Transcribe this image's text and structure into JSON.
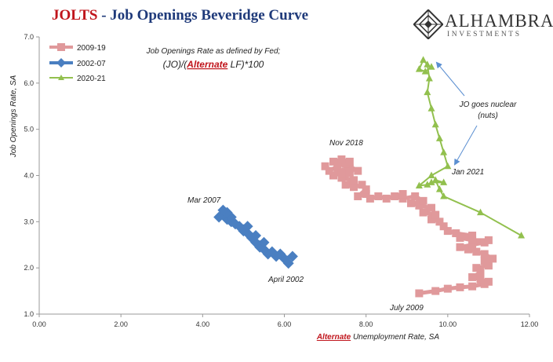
{
  "header": {
    "title_accent": "JOLTS",
    "title_rest": " - Job Openings Beveridge Curve"
  },
  "logo": {
    "name": "ALHAMBRA",
    "tagline": "INVESTMENTS"
  },
  "annotations": {
    "definition_line1": "Job Openings Rate as defined by Fed;",
    "definition_pre": "(JO)/(",
    "definition_accent": "Alternate",
    "definition_post": " LF)*100",
    "nuclear_line1": "JO goes nuclear",
    "nuclear_line2": "(nuts)",
    "mar_2007": "Mar 2007",
    "april_2002": "April 2002",
    "nov_2018": "Nov 2018",
    "july_2009": "July 2009",
    "jan_2021": "Jan 2021"
  },
  "colors": {
    "series_2009_19": "#e0999b",
    "series_2002_07": "#4a7fc1",
    "series_2020_21": "#92c04e",
    "accent": "#c0141b",
    "arrow": "#5b8fd1"
  },
  "chart_data": {
    "type": "scatter",
    "xlabel_accent": "Alternate",
    "xlabel_rest": " Unemployment Rate, SA",
    "ylabel": "Job Openings Rate, SA",
    "xlim": [
      0,
      12
    ],
    "ylim": [
      1,
      7
    ],
    "x_ticks": [
      "0.00",
      "2.00",
      "4.00",
      "6.00",
      "8.00",
      "10.00",
      "12.00"
    ],
    "y_ticks": [
      "1.0",
      "2.0",
      "3.0",
      "4.0",
      "5.0",
      "6.0",
      "7.0"
    ],
    "grid": false,
    "legend": "top-left",
    "series": [
      {
        "name": "2009-19",
        "marker": "square",
        "points": [
          [
            9.3,
            1.45
          ],
          [
            9.7,
            1.5
          ],
          [
            10.0,
            1.55
          ],
          [
            10.3,
            1.58
          ],
          [
            10.6,
            1.6
          ],
          [
            10.9,
            1.65
          ],
          [
            11.0,
            1.7
          ],
          [
            10.8,
            1.75
          ],
          [
            10.6,
            1.8
          ],
          [
            10.8,
            1.9
          ],
          [
            10.7,
            2.0
          ],
          [
            11.0,
            2.05
          ],
          [
            10.9,
            2.15
          ],
          [
            11.1,
            2.2
          ],
          [
            10.9,
            2.3
          ],
          [
            10.7,
            2.35
          ],
          [
            10.5,
            2.4
          ],
          [
            10.3,
            2.45
          ],
          [
            10.6,
            2.5
          ],
          [
            10.9,
            2.55
          ],
          [
            11.0,
            2.6
          ],
          [
            10.6,
            2.6
          ],
          [
            10.3,
            2.65
          ],
          [
            10.6,
            2.7
          ],
          [
            10.2,
            2.75
          ],
          [
            10.0,
            2.8
          ],
          [
            9.9,
            2.9
          ],
          [
            9.8,
            3.0
          ],
          [
            9.6,
            3.05
          ],
          [
            9.7,
            3.15
          ],
          [
            9.4,
            3.2
          ],
          [
            9.6,
            3.3
          ],
          [
            9.3,
            3.35
          ],
          [
            9.1,
            3.4
          ],
          [
            9.4,
            3.45
          ],
          [
            9.2,
            3.55
          ],
          [
            8.9,
            3.5
          ],
          [
            8.7,
            3.55
          ],
          [
            8.9,
            3.6
          ],
          [
            8.5,
            3.5
          ],
          [
            8.3,
            3.55
          ],
          [
            8.1,
            3.5
          ],
          [
            8.0,
            3.6
          ],
          [
            7.8,
            3.55
          ],
          [
            8.0,
            3.7
          ],
          [
            7.9,
            3.8
          ],
          [
            7.7,
            3.75
          ],
          [
            7.5,
            3.8
          ],
          [
            7.7,
            3.9
          ],
          [
            7.4,
            3.95
          ],
          [
            7.6,
            4.05
          ],
          [
            7.3,
            4.1
          ],
          [
            7.6,
            4.15
          ],
          [
            7.8,
            4.1
          ],
          [
            7.5,
            4.25
          ],
          [
            7.2,
            4.3
          ],
          [
            7.4,
            4.35
          ],
          [
            7.6,
            4.3
          ],
          [
            7.3,
            4.2
          ],
          [
            7.1,
            4.1
          ],
          [
            7.0,
            4.2
          ],
          [
            7.2,
            4.0
          ],
          [
            7.4,
            4.05
          ]
        ]
      },
      {
        "name": "2002-07",
        "marker": "diamond",
        "points": [
          [
            6.2,
            2.25
          ],
          [
            6.0,
            2.2
          ],
          [
            6.1,
            2.1
          ],
          [
            5.9,
            2.3
          ],
          [
            5.8,
            2.25
          ],
          [
            5.7,
            2.35
          ],
          [
            5.6,
            2.3
          ],
          [
            5.5,
            2.4
          ],
          [
            5.4,
            2.45
          ],
          [
            5.5,
            2.55
          ],
          [
            5.3,
            2.55
          ],
          [
            5.2,
            2.65
          ],
          [
            5.3,
            2.7
          ],
          [
            5.1,
            2.75
          ],
          [
            5.0,
            2.8
          ],
          [
            5.1,
            2.9
          ],
          [
            4.9,
            2.9
          ],
          [
            4.8,
            2.95
          ],
          [
            4.7,
            3.0
          ],
          [
            4.6,
            3.05
          ],
          [
            4.7,
            3.1
          ],
          [
            4.5,
            3.15
          ],
          [
            4.6,
            3.2
          ],
          [
            4.5,
            3.25
          ],
          [
            4.4,
            3.1
          ]
        ]
      },
      {
        "name": "2020-21",
        "marker": "triangle",
        "points": [
          [
            11.8,
            2.7
          ],
          [
            10.8,
            3.2
          ],
          [
            9.9,
            3.55
          ],
          [
            9.8,
            3.7
          ],
          [
            9.7,
            3.9
          ],
          [
            9.9,
            3.85
          ],
          [
            9.6,
            3.85
          ],
          [
            9.5,
            3.8
          ],
          [
            9.3,
            3.78
          ],
          [
            9.6,
            4.0
          ],
          [
            10.0,
            4.2
          ],
          [
            9.9,
            4.5
          ],
          [
            9.8,
            4.8
          ],
          [
            9.7,
            5.1
          ],
          [
            9.6,
            5.45
          ],
          [
            9.5,
            5.8
          ],
          [
            9.55,
            6.1
          ],
          [
            9.5,
            6.4
          ],
          [
            9.4,
            6.5
          ],
          [
            9.3,
            6.3
          ],
          [
            9.45,
            6.25
          ],
          [
            9.6,
            6.35
          ]
        ]
      }
    ]
  }
}
